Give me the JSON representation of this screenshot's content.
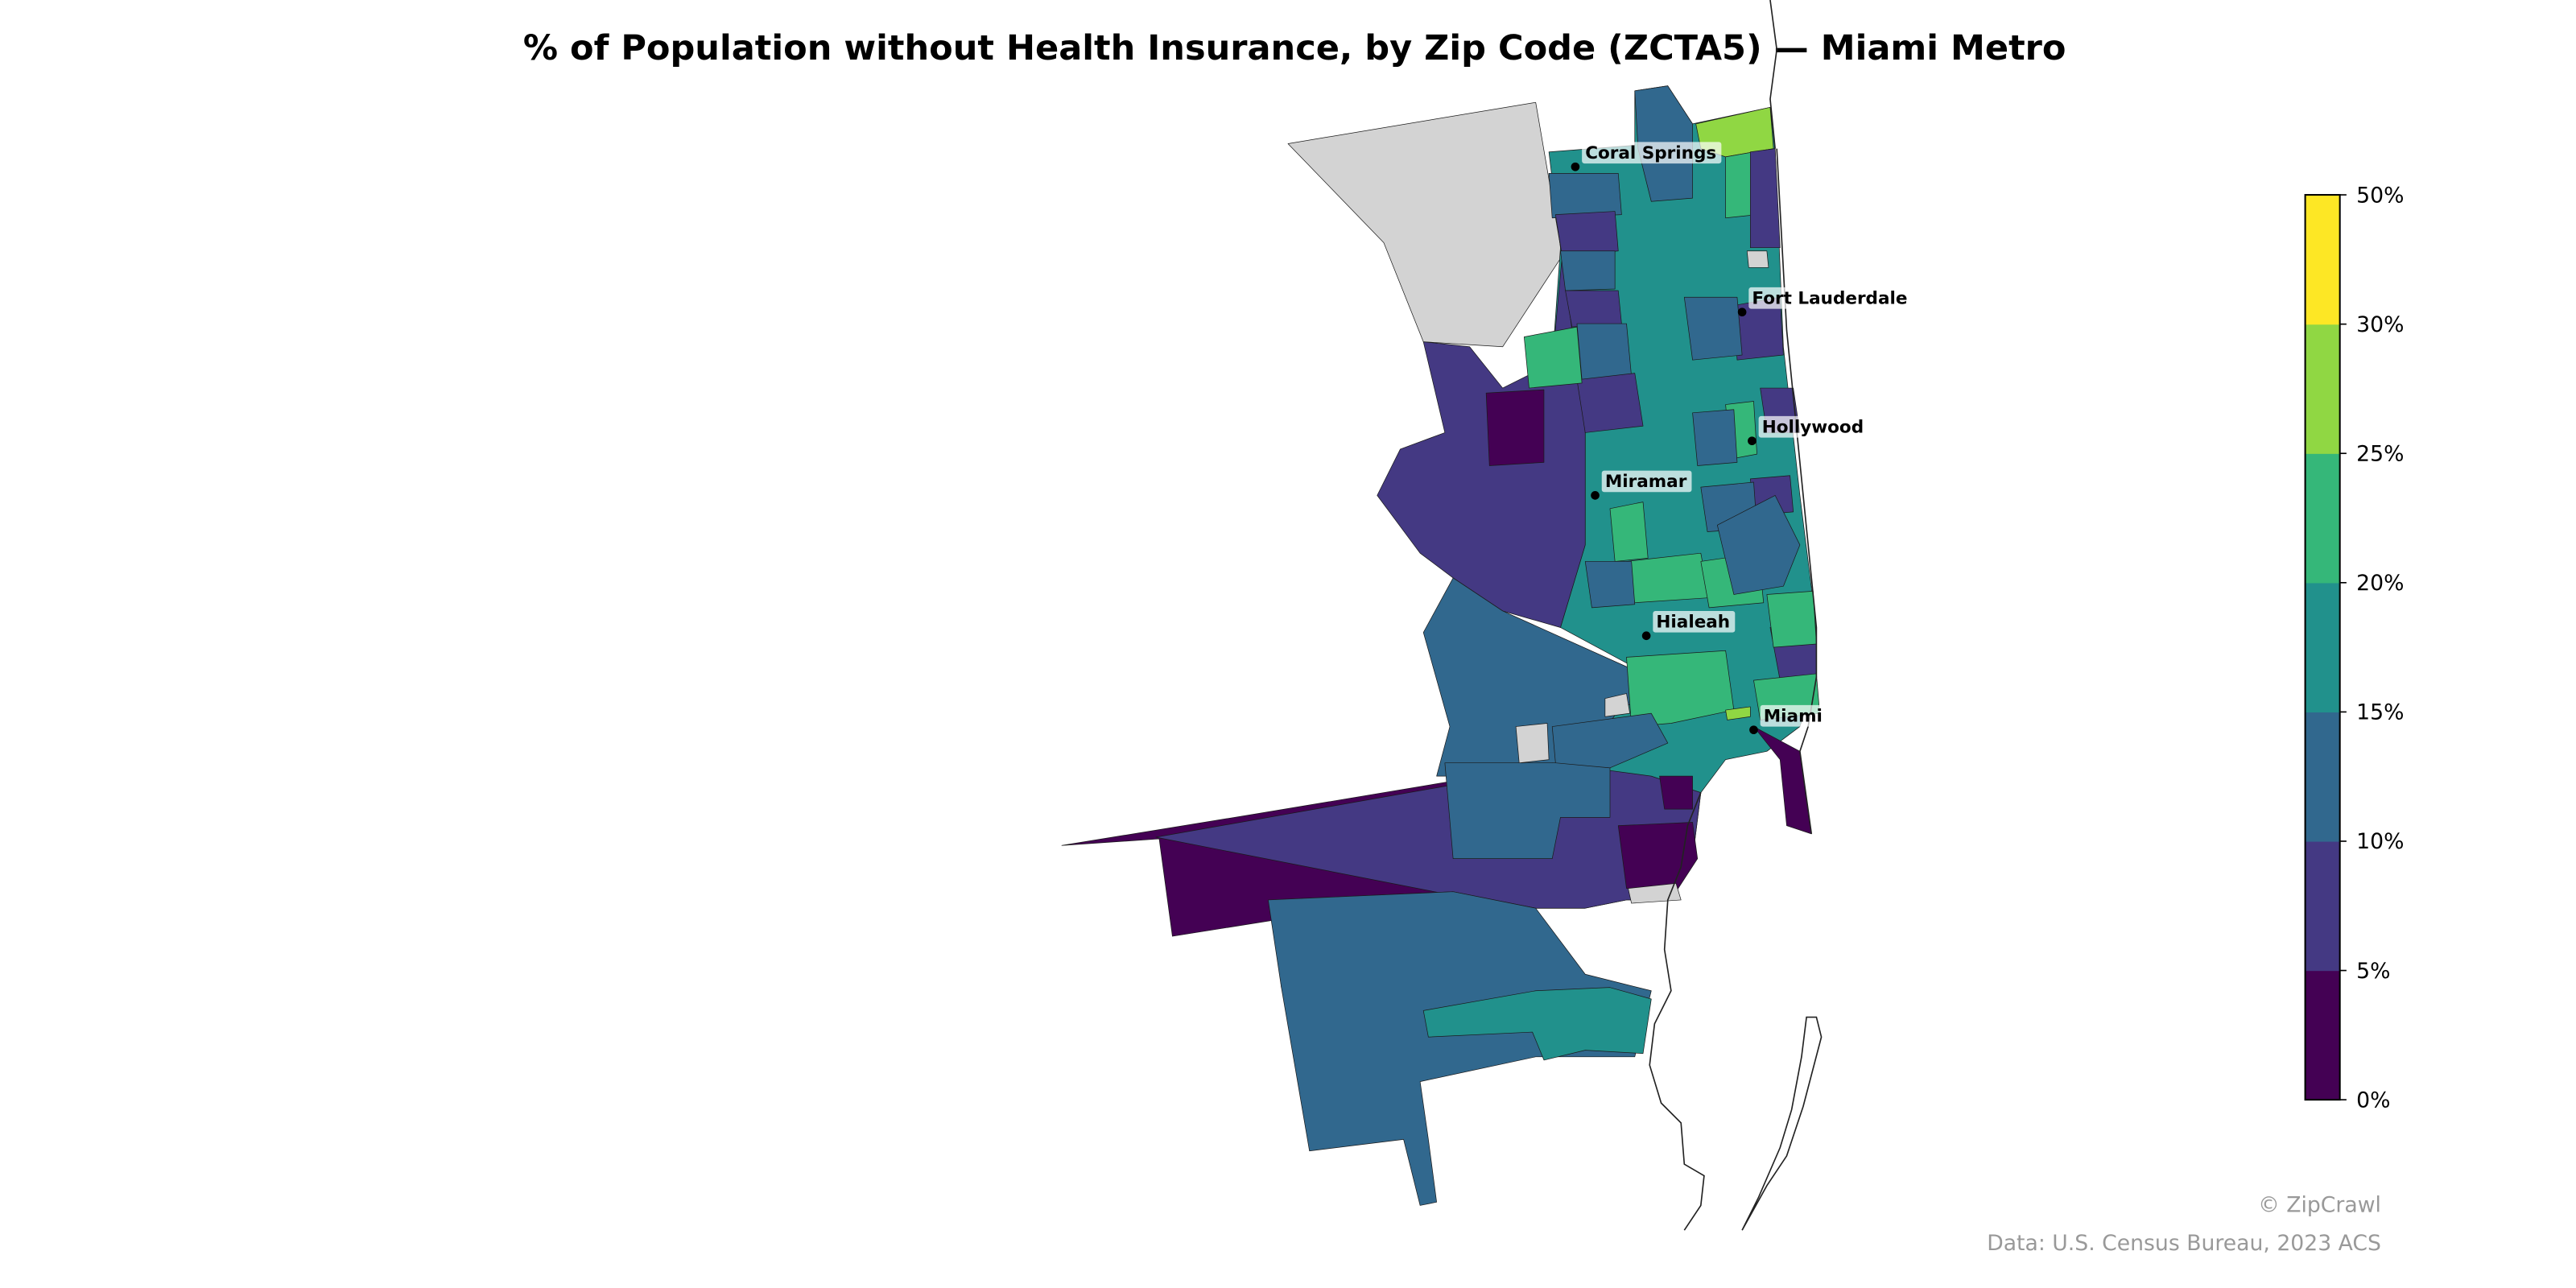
{
  "title": "% of Population without Health Insurance, by Zip Code (ZCTA5) — Miami Metro",
  "colormap": "viridis",
  "no_data_color": "#d3d3d3",
  "legend": {
    "bins": [
      {
        "label": "0%",
        "color": "#440154"
      },
      {
        "label": "5%",
        "color": "#443983"
      },
      {
        "label": "10%",
        "color": "#31688e"
      },
      {
        "label": "15%",
        "color": "#21918c"
      },
      {
        "label": "20%",
        "color": "#35b779"
      },
      {
        "label": "25%",
        "color": "#90d743"
      },
      {
        "label": "30%",
        "color": "#fde725"
      }
    ],
    "ticks": [
      "0%",
      "5%",
      "10%",
      "15%",
      "20%",
      "25%",
      "30%",
      "50%"
    ]
  },
  "cities": [
    {
      "name": "Coral Springs"
    },
    {
      "name": "Fort Lauderdale"
    },
    {
      "name": "Hollywood"
    },
    {
      "name": "Miramar"
    },
    {
      "name": "Hialeah"
    },
    {
      "name": "Miami"
    }
  ],
  "credits": {
    "brand": "© ZipCrawl",
    "source": "Data: U.S. Census Bureau, 2023 ACS"
  }
}
